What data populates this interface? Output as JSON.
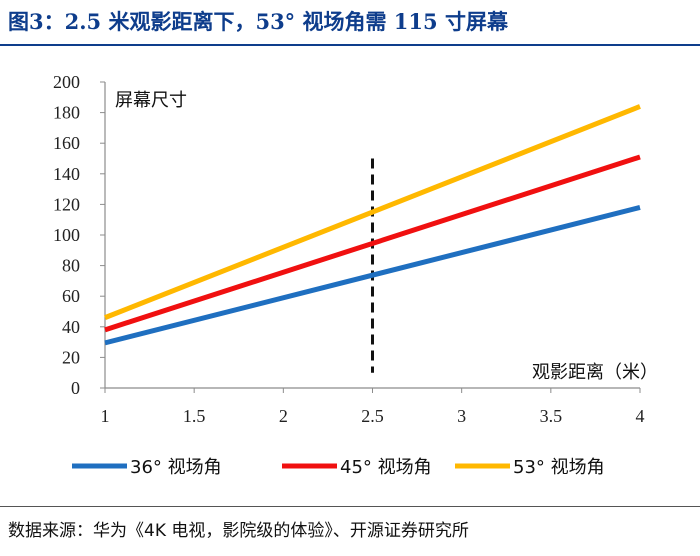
{
  "header": {
    "title": "图3：2.5 米观影距离下，53° 视场角需 115 寸屏幕"
  },
  "footer": {
    "source": "数据来源：华为《4K 电视，影院级的体验》、开源证券研究所"
  },
  "chart_data": {
    "type": "line",
    "title": "图3：2.5 米观影距离下，53° 视场角需 115 寸屏幕",
    "xlabel": "观影距离（米）",
    "ylabel": "屏幕尺寸",
    "xlim": [
      1,
      4
    ],
    "ylim": [
      0,
      200
    ],
    "x_ticks": [
      "1",
      "1.5",
      "2",
      "2.5",
      "3",
      "3.5",
      "4"
    ],
    "y_ticks": [
      "0",
      "20",
      "40",
      "60",
      "80",
      "100",
      "120",
      "140",
      "160",
      "180",
      "200"
    ],
    "grid": false,
    "legend_position": "bottom",
    "reference_line": {
      "x": 2.5,
      "style": "dashed",
      "color": "#111111"
    },
    "series": [
      {
        "name": "36° 视场角",
        "color": "#1f6fc0",
        "x": [
          1,
          4
        ],
        "values": [
          29.5,
          118
        ]
      },
      {
        "name": "45° 视场角",
        "color": "#f01010",
        "x": [
          1,
          4
        ],
        "values": [
          38,
          151
        ]
      },
      {
        "name": "53° 视场角",
        "color": "#ffb800",
        "x": [
          1,
          4
        ],
        "values": [
          46,
          184
        ]
      }
    ]
  }
}
